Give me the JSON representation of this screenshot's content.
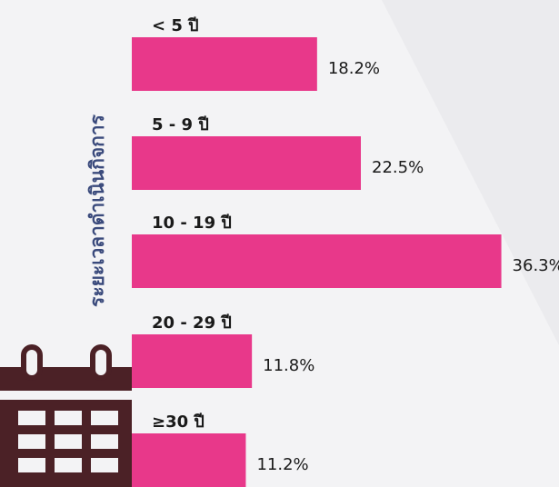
{
  "chart_data": {
    "type": "bar",
    "orientation": "horizontal",
    "axis_label": "ระยะเวลาดำเนินกิจการ",
    "categories": [
      "< 5 ปี",
      "5 - 9 ปี",
      "10 - 19 ปี",
      "20 - 29 ปี",
      "≥30 ปี"
    ],
    "values": [
      18.2,
      22.5,
      36.3,
      11.8,
      11.2
    ],
    "value_labels": [
      "18.2%",
      "22.5%",
      "36.3%",
      "11.8%",
      "11.2%"
    ],
    "color": "#e8388a"
  }
}
